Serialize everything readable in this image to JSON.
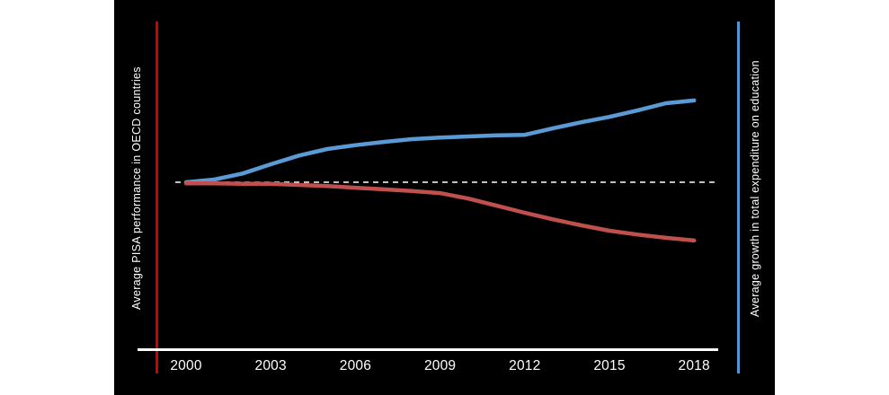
{
  "page": {
    "background_color": "#ffffff",
    "chart_background_color": "#000000"
  },
  "chart_data": {
    "type": "line",
    "x": [
      2000,
      2001,
      2002,
      2003,
      2004,
      2005,
      2006,
      2007,
      2008,
      2009,
      2010,
      2011,
      2012,
      2013,
      2014,
      2015,
      2016,
      2017,
      2018
    ],
    "x_tick_labels": [
      "2000",
      "2003",
      "2006",
      "2009",
      "2012",
      "2015",
      "2018"
    ],
    "left_axis_label": "Average PISA performance in OECD countries",
    "right_axis_label": "Average growth in total expenditure on education",
    "left_axis_line_color": "#d10000",
    "right_axis_line_color": "#4f96d2",
    "axis_color": "#ffffff",
    "baseline_value": 100,
    "baseline_style": "dashed",
    "baseline_color": "#ffffff",
    "ylim": [
      85,
      120
    ],
    "grid": false,
    "legend_position": "vertical edge labels",
    "series": [
      {
        "name": "Average growth in total expenditure on education",
        "color": "#5b9bd5",
        "values": [
          100,
          100.5,
          101.6,
          103.3,
          104.9,
          106.1,
          106.8,
          107.4,
          107.9,
          108.2,
          108.4,
          108.6,
          108.7,
          109.9,
          111.0,
          112.0,
          113.2,
          114.5,
          115.0
        ]
      },
      {
        "name": "Average PISA performance in OECD countries",
        "color": "#c0504d",
        "values": [
          99.8,
          99.8,
          99.7,
          99.7,
          99.5,
          99.3,
          99.0,
          98.7,
          98.4,
          98.0,
          97.0,
          95.7,
          94.4,
          93.2,
          92.1,
          91.1,
          90.4,
          89.8,
          89.3
        ]
      }
    ]
  }
}
